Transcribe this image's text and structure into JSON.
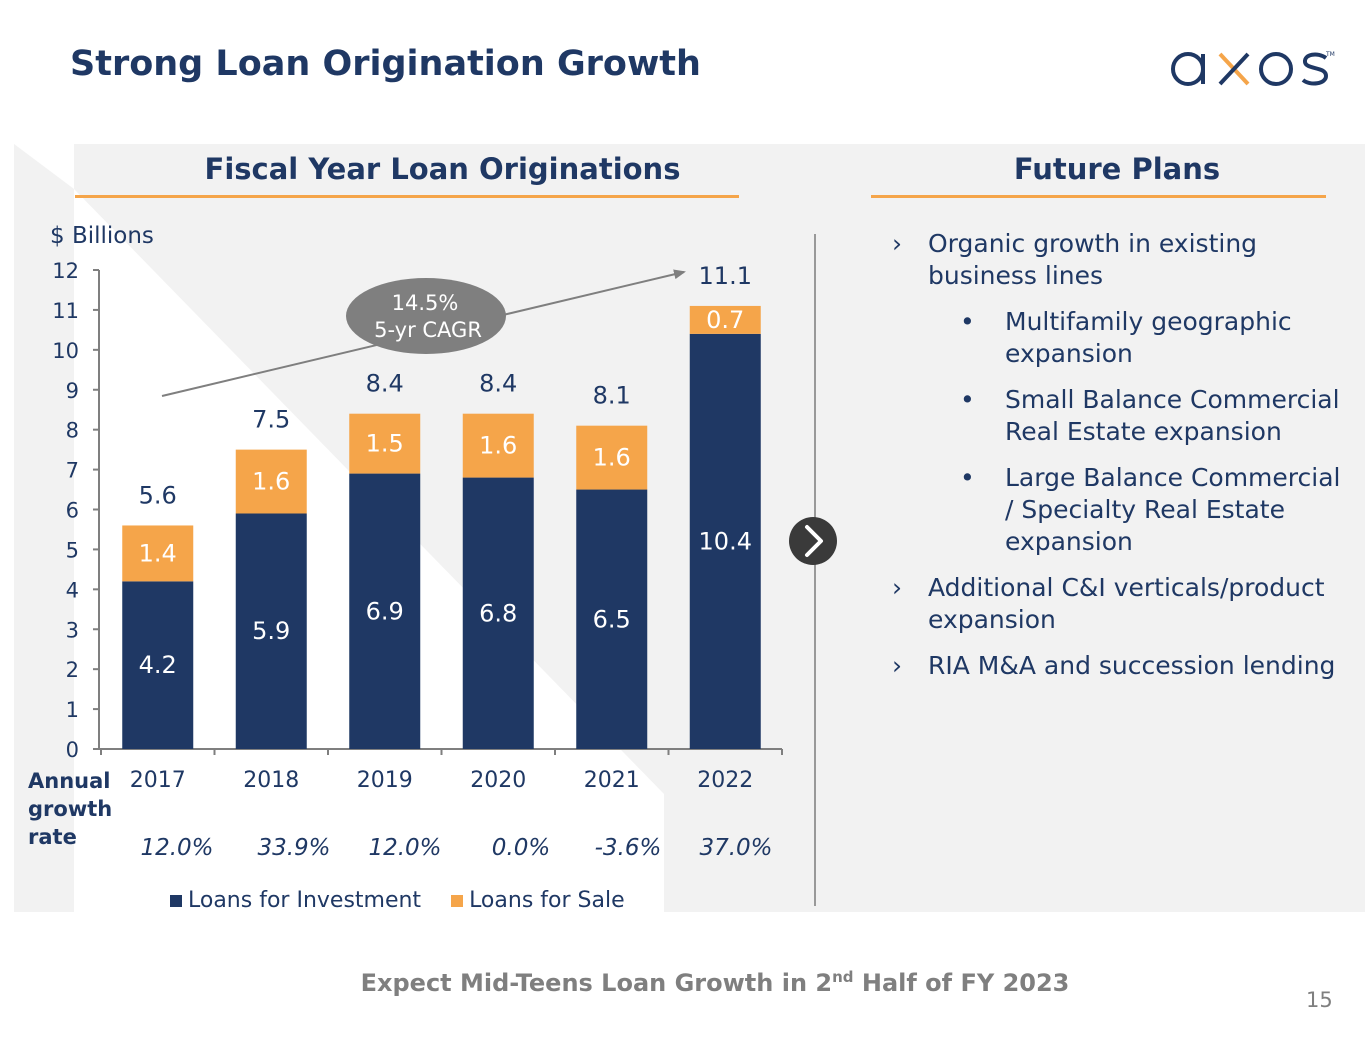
{
  "header": {
    "title": "Strong Loan Origination Growth",
    "logo_text": "axos"
  },
  "left_panel": {
    "heading": "Fiscal Year Loan Originations"
  },
  "right_panel": {
    "heading": "Future Plans",
    "items": [
      {
        "label": "Organic growth in existing business lines",
        "marker": "›",
        "level": 1
      },
      {
        "label": "Multifamily geographic expansion",
        "marker": "•",
        "level": 2
      },
      {
        "label": "Small Balance Commercial Real Estate expansion",
        "marker": "•",
        "level": 2
      },
      {
        "label": "Large Balance Commercial / Specialty Real Estate expansion",
        "marker": "•",
        "level": 2
      },
      {
        "label": "Additional C&I verticals/product expansion",
        "marker": "›",
        "level": 1
      },
      {
        "label": "RIA M&A and succession lending",
        "marker": "›",
        "level": 1
      }
    ]
  },
  "chart_data": {
    "type": "bar",
    "stacked": true,
    "ylabel": "$ Billions",
    "ylim": [
      0,
      12
    ],
    "yticks": [
      "0",
      "1",
      "2",
      "3",
      "4",
      "5",
      "6",
      "7",
      "8",
      "9",
      "10",
      "11",
      "12"
    ],
    "categories": [
      "2017",
      "2018",
      "2019",
      "2020",
      "2021",
      "2022"
    ],
    "series": [
      {
        "name": "Loans for Investment",
        "color": "#1f3864",
        "values": [
          4.2,
          5.9,
          6.9,
          6.8,
          6.5,
          10.4
        ],
        "labels": [
          "4.2",
          "5.9",
          "6.9",
          "6.8",
          "6.5",
          "10.4"
        ]
      },
      {
        "name": "Loans for Sale",
        "color": "#f5a54a",
        "values": [
          1.4,
          1.6,
          1.5,
          1.6,
          1.6,
          0.7
        ],
        "labels": [
          "1.4",
          "1.6",
          "1.5",
          "1.6",
          "1.6",
          "0.7"
        ]
      }
    ],
    "totals": [
      5.6,
      7.5,
      8.4,
      8.4,
      8.1,
      11.1
    ],
    "total_labels": [
      "5.6",
      "7.5",
      "8.4",
      "8.4",
      "8.1",
      "11.1"
    ],
    "annotation": {
      "line1": "14.5%",
      "line2": "5-yr CAGR"
    },
    "growth_label": "Annual growth rate",
    "growth_rates": [
      "12.0%",
      "33.9%",
      "12.0%",
      "0.0%",
      "-3.6%",
      "37.0%"
    ],
    "legend": [
      "Loans for Investment",
      "Loans for Sale"
    ]
  },
  "footer": {
    "text_before": "Expect Mid-Teens Loan Growth in 2",
    "superscript": "nd",
    "text_after": " Half of FY 2023"
  },
  "page_number": "15",
  "colors": {
    "navy": "#1f3864",
    "orange": "#f5a54a",
    "grey_text": "#7f7f7f"
  }
}
